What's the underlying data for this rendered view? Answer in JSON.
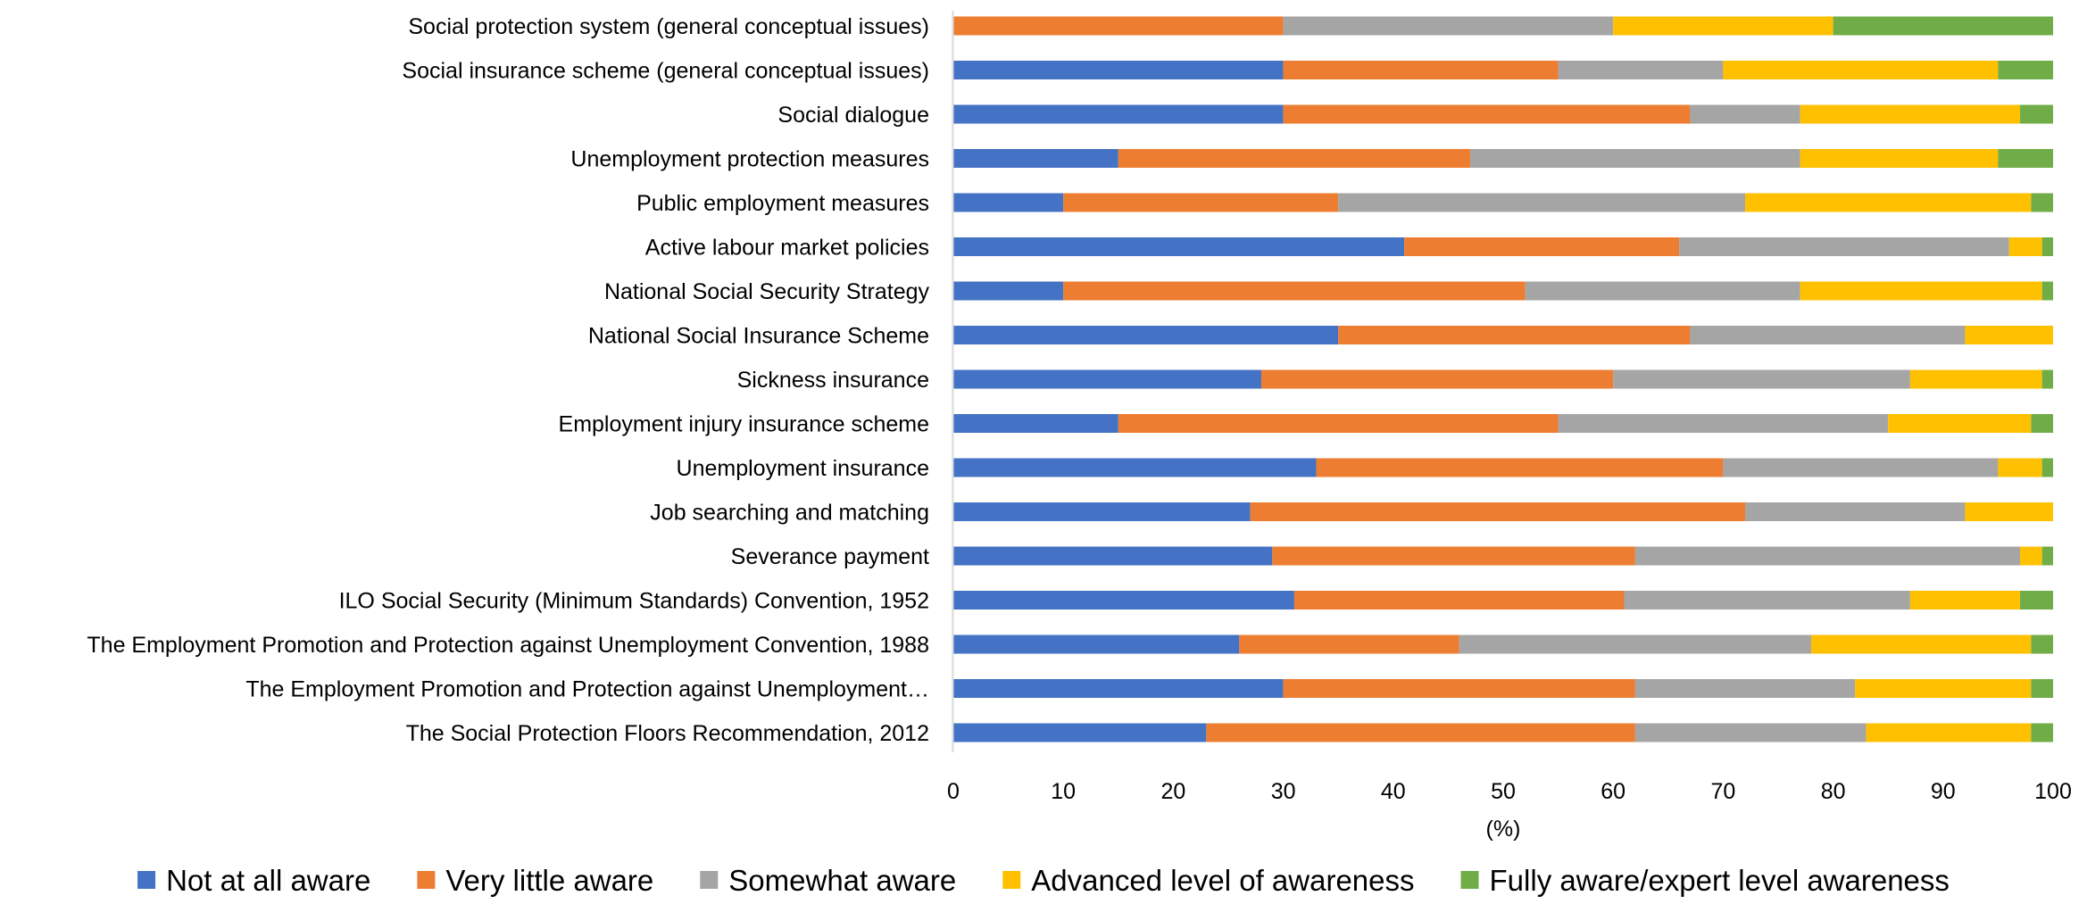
{
  "chart_data": {
    "type": "bar",
    "orientation": "horizontal",
    "stacked": true,
    "categories": [
      "Social protection system (general conceptual issues)",
      "Social insurance scheme (general conceptual issues)",
      "Social dialogue",
      "Unemployment protection measures",
      "Public employment measures",
      "Active labour market policies",
      "National Social Security Strategy",
      "National Social Insurance Scheme",
      "Sickness insurance",
      "Employment injury insurance scheme",
      "Unemployment insurance",
      "Job searching and matching",
      "Severance payment",
      "ILO Social Security (Minimum Standards) Convention, 1952",
      "The Employment Promotion and Protection against Unemployment Convention, 1988",
      "The Employment Promotion and Protection against Unemployment…",
      "The Social Protection Floors Recommendation, 2012"
    ],
    "series": [
      {
        "name": "Not at all aware",
        "color": "#4472C4",
        "values": [
          0,
          30,
          30,
          15,
          10,
          41,
          10,
          35,
          28,
          15,
          33,
          27,
          29,
          31,
          26,
          30,
          23
        ]
      },
      {
        "name": "Very little aware",
        "color": "#ED7D31",
        "values": [
          30,
          25,
          37,
          32,
          25,
          25,
          42,
          32,
          32,
          40,
          37,
          45,
          33,
          30,
          20,
          32,
          39
        ]
      },
      {
        "name": "Somewhat aware",
        "color": "#A5A5A5",
        "values": [
          30,
          15,
          10,
          30,
          37,
          30,
          25,
          25,
          27,
          30,
          25,
          20,
          35,
          26,
          32,
          20,
          21
        ]
      },
      {
        "name": "Advanced level of awareness",
        "color": "#FFC000",
        "values": [
          20,
          25,
          20,
          18,
          26,
          3,
          22,
          8,
          12,
          13,
          4,
          8,
          2,
          10,
          20,
          16,
          15
        ]
      },
      {
        "name": "Fully aware/expert level awareness",
        "color": "#70AD47",
        "values": [
          20,
          5,
          3,
          5,
          2,
          1,
          1,
          0,
          1,
          2,
          1,
          0,
          1,
          3,
          2,
          2,
          2
        ]
      }
    ],
    "xlabel": "(%)",
    "ylabel": "",
    "xlim": [
      0,
      100
    ],
    "xticks": [
      "0",
      "10",
      "20",
      "30",
      "40",
      "50",
      "60",
      "70",
      "80",
      "90",
      "100"
    ],
    "grid": false,
    "legend_position": "bottom"
  }
}
